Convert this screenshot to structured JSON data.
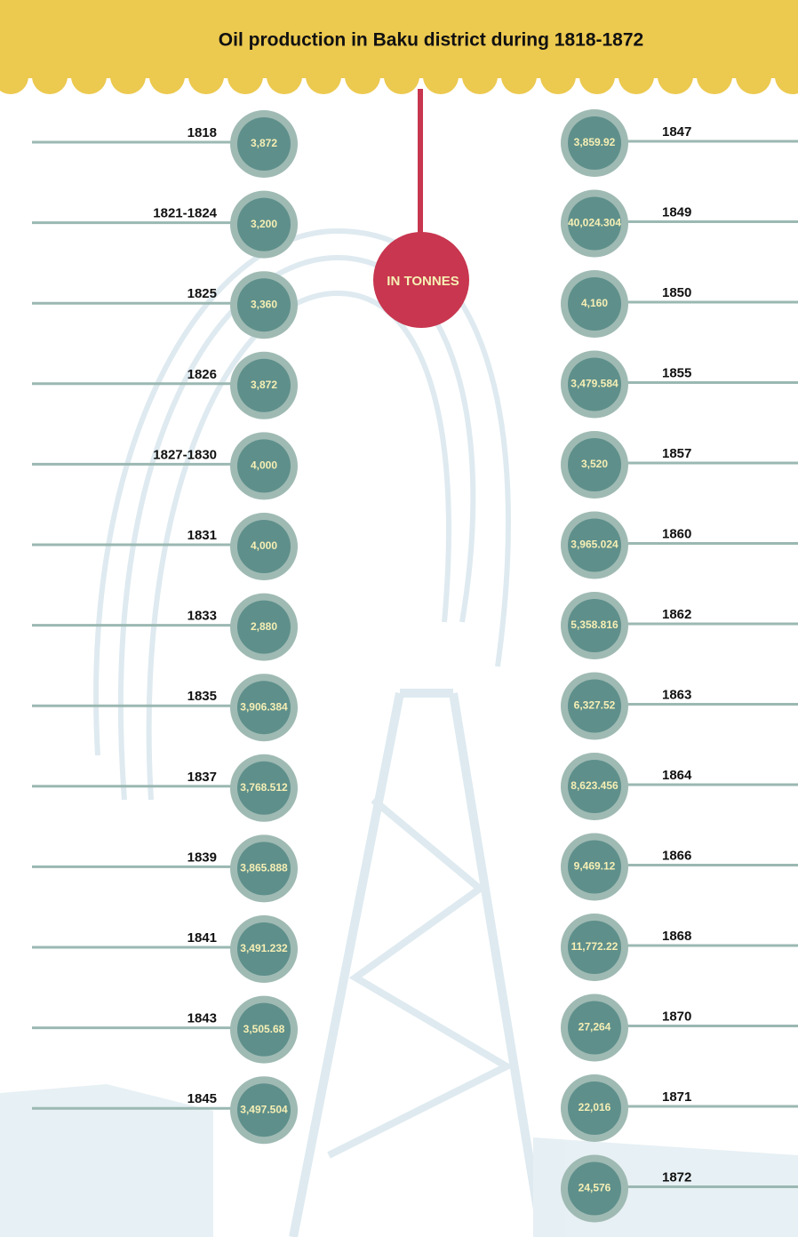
{
  "title": "Oil production in Baku district during 1818-1872",
  "unit_label": "IN TONNES",
  "left": [
    {
      "year": "1818",
      "value": "3,872"
    },
    {
      "year": "1821-1824",
      "value": "3,200"
    },
    {
      "year": "1825",
      "value": "3,360"
    },
    {
      "year": "1826",
      "value": "3,872"
    },
    {
      "year": "1827-1830",
      "value": "4,000"
    },
    {
      "year": "1831",
      "value": "4,000"
    },
    {
      "year": "1833",
      "value": "2,880"
    },
    {
      "year": "1835",
      "value": "3,906.384"
    },
    {
      "year": "1837",
      "value": "3,768.512"
    },
    {
      "year": "1839",
      "value": "3,865.888"
    },
    {
      "year": "1841",
      "value": "3,491.232"
    },
    {
      "year": "1843",
      "value": "3,505.68"
    },
    {
      "year": "1845",
      "value": "3,497.504"
    }
  ],
  "right": [
    {
      "year": "1847",
      "value": "3,859.92"
    },
    {
      "year": "1849",
      "value": "40,024.304"
    },
    {
      "year": "1850",
      "value": "4,160"
    },
    {
      "year": "1855",
      "value": "3,479.584"
    },
    {
      "year": "1857",
      "value": "3,520"
    },
    {
      "year": "1860",
      "value": "3,965.024"
    },
    {
      "year": "1862",
      "value": "5,358.816"
    },
    {
      "year": "1863",
      "value": "6,327.52"
    },
    {
      "year": "1864",
      "value": "8,623.456"
    },
    {
      "year": "1866",
      "value": "9,469.12"
    },
    {
      "year": "1868",
      "value": "11,772.22"
    },
    {
      "year": "1870",
      "value": "27,264"
    },
    {
      "year": "1871",
      "value": "22,016"
    },
    {
      "year": "1872",
      "value": "24,576"
    }
  ]
}
